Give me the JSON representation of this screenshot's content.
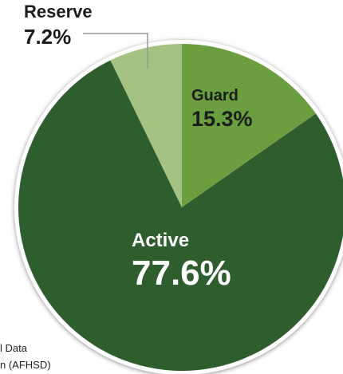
{
  "chart_data": {
    "type": "pie",
    "categories": [
      "Guard",
      "Active",
      "Reserve"
    ],
    "values": [
      15.3,
      77.6,
      7.2
    ],
    "value_labels": [
      "15.3%",
      "77.6%",
      "7.2%"
    ],
    "colors": [
      "#6a9e3f",
      "#2e5e2e",
      "#a4c282"
    ],
    "notes": [
      "l Data",
      "n (AFHSD)"
    ]
  }
}
